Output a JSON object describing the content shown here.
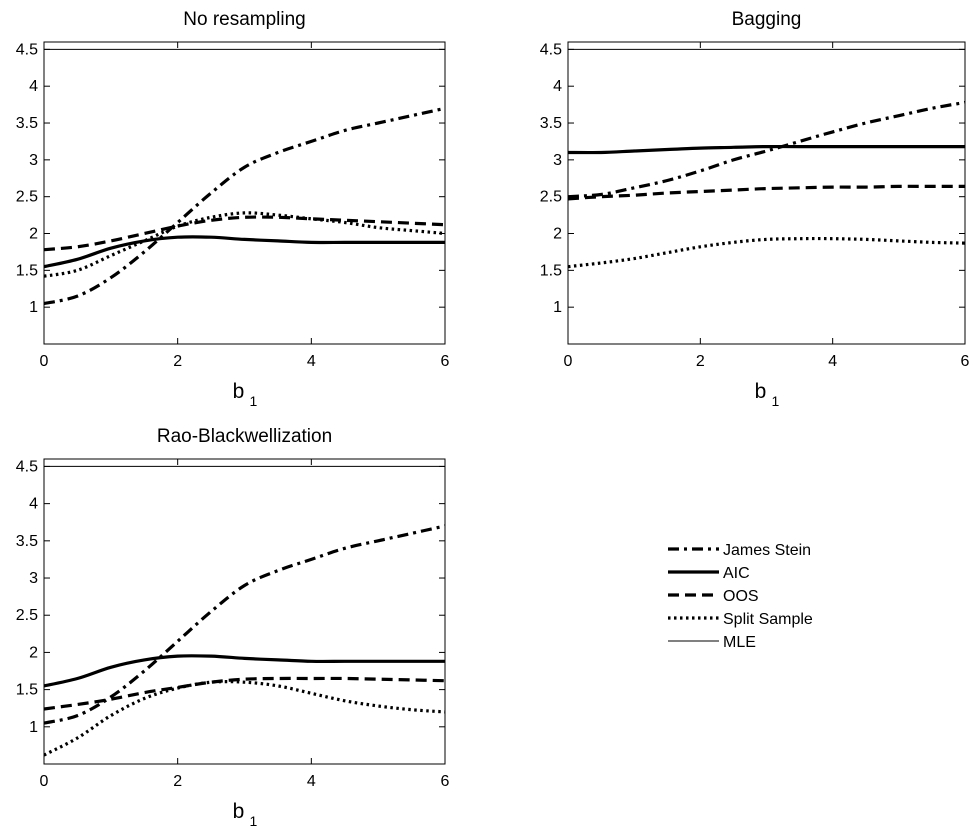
{
  "figure": {
    "xlabel": "b",
    "xlabel_subscript": "1",
    "legend_position": "right"
  },
  "legend": [
    {
      "name": "James Stein",
      "style": "dashdot"
    },
    {
      "name": "AIC",
      "style": "solid"
    },
    {
      "name": "OOS",
      "style": "dashed"
    },
    {
      "name": "Split Sample",
      "style": "dotted"
    },
    {
      "name": "MLE",
      "style": "thin"
    }
  ],
  "chart_data": [
    {
      "type": "line",
      "title": "No resampling",
      "xlabel": "b1",
      "xlim": [
        0,
        6
      ],
      "ylim": [
        0.5,
        4.6
      ],
      "xticks": [
        "0",
        "2",
        "4",
        "6"
      ],
      "yticks": [
        "1",
        "1.5",
        "2",
        "2.5",
        "3",
        "3.5",
        "4",
        "4.5"
      ],
      "x": [
        0,
        0.5,
        1,
        1.5,
        2,
        2.5,
        3,
        3.5,
        4,
        4.5,
        5,
        5.5,
        6
      ],
      "series": [
        {
          "name": "James Stein",
          "style": "dashdot",
          "values": [
            1.05,
            1.15,
            1.4,
            1.75,
            2.15,
            2.55,
            2.9,
            3.1,
            3.25,
            3.4,
            3.5,
            3.6,
            3.7
          ]
        },
        {
          "name": "AIC",
          "style": "solid",
          "values": [
            1.55,
            1.65,
            1.8,
            1.9,
            1.95,
            1.95,
            1.92,
            1.9,
            1.88,
            1.88,
            1.88,
            1.88,
            1.88
          ]
        },
        {
          "name": "OOS",
          "style": "dashed",
          "values": [
            1.78,
            1.82,
            1.9,
            2.0,
            2.1,
            2.18,
            2.22,
            2.22,
            2.2,
            2.18,
            2.16,
            2.14,
            2.12
          ]
        },
        {
          "name": "Split Sample",
          "style": "dotted",
          "values": [
            1.42,
            1.5,
            1.7,
            1.9,
            2.1,
            2.22,
            2.28,
            2.25,
            2.2,
            2.15,
            2.08,
            2.04,
            2.0
          ]
        },
        {
          "name": "MLE",
          "style": "thin",
          "values": [
            4.5,
            4.5,
            4.5,
            4.5,
            4.5,
            4.5,
            4.5,
            4.5,
            4.5,
            4.5,
            4.5,
            4.5,
            4.5
          ]
        }
      ]
    },
    {
      "type": "line",
      "title": "Bagging",
      "xlabel": "b1",
      "xlim": [
        0,
        6
      ],
      "ylim": [
        0.5,
        4.6
      ],
      "xticks": [
        "0",
        "2",
        "4",
        "6"
      ],
      "yticks": [
        "1",
        "1.5",
        "2",
        "2.5",
        "3",
        "3.5",
        "4",
        "4.5"
      ],
      "x": [
        0,
        0.5,
        1,
        1.5,
        2,
        2.5,
        3,
        3.5,
        4,
        4.5,
        5,
        5.5,
        6
      ],
      "series": [
        {
          "name": "James Stein",
          "style": "dashdot",
          "values": [
            2.5,
            2.53,
            2.62,
            2.72,
            2.85,
            3.0,
            3.12,
            3.25,
            3.38,
            3.5,
            3.6,
            3.7,
            3.78
          ]
        },
        {
          "name": "AIC",
          "style": "solid",
          "values": [
            3.1,
            3.1,
            3.12,
            3.14,
            3.16,
            3.17,
            3.18,
            3.18,
            3.18,
            3.18,
            3.18,
            3.18,
            3.18
          ]
        },
        {
          "name": "OOS",
          "style": "dashed",
          "values": [
            2.47,
            2.5,
            2.52,
            2.55,
            2.57,
            2.59,
            2.61,
            2.62,
            2.63,
            2.63,
            2.64,
            2.64,
            2.64
          ]
        },
        {
          "name": "Split Sample",
          "style": "dotted",
          "values": [
            1.55,
            1.6,
            1.66,
            1.74,
            1.82,
            1.88,
            1.92,
            1.93,
            1.93,
            1.92,
            1.9,
            1.88,
            1.87
          ]
        },
        {
          "name": "MLE",
          "style": "thin",
          "values": [
            4.5,
            4.5,
            4.5,
            4.5,
            4.5,
            4.5,
            4.5,
            4.5,
            4.5,
            4.5,
            4.5,
            4.5,
            4.5
          ]
        }
      ]
    },
    {
      "type": "line",
      "title": "Rao-Blackwellization",
      "xlabel": "b1",
      "xlim": [
        0,
        6
      ],
      "ylim": [
        0.5,
        4.6
      ],
      "xticks": [
        "0",
        "2",
        "4",
        "6"
      ],
      "yticks": [
        "1",
        "1.5",
        "2",
        "2.5",
        "3",
        "3.5",
        "4",
        "4.5"
      ],
      "x": [
        0,
        0.5,
        1,
        1.5,
        2,
        2.5,
        3,
        3.5,
        4,
        4.5,
        5,
        5.5,
        6
      ],
      "series": [
        {
          "name": "James Stein",
          "style": "dashdot",
          "values": [
            1.05,
            1.15,
            1.4,
            1.75,
            2.15,
            2.55,
            2.9,
            3.1,
            3.25,
            3.4,
            3.5,
            3.6,
            3.7
          ]
        },
        {
          "name": "AIC",
          "style": "solid",
          "values": [
            1.55,
            1.65,
            1.8,
            1.9,
            1.95,
            1.95,
            1.92,
            1.9,
            1.88,
            1.88,
            1.88,
            1.88,
            1.88
          ]
        },
        {
          "name": "OOS",
          "style": "dashed",
          "values": [
            1.24,
            1.3,
            1.37,
            1.46,
            1.53,
            1.6,
            1.64,
            1.65,
            1.65,
            1.65,
            1.64,
            1.63,
            1.62
          ]
        },
        {
          "name": "Split Sample",
          "style": "dotted",
          "values": [
            0.62,
            0.85,
            1.15,
            1.38,
            1.52,
            1.6,
            1.6,
            1.55,
            1.45,
            1.35,
            1.28,
            1.23,
            1.2
          ]
        },
        {
          "name": "MLE",
          "style": "thin",
          "values": [
            4.5,
            4.5,
            4.5,
            4.5,
            4.5,
            4.5,
            4.5,
            4.5,
            4.5,
            4.5,
            4.5,
            4.5,
            4.5
          ]
        }
      ]
    }
  ]
}
